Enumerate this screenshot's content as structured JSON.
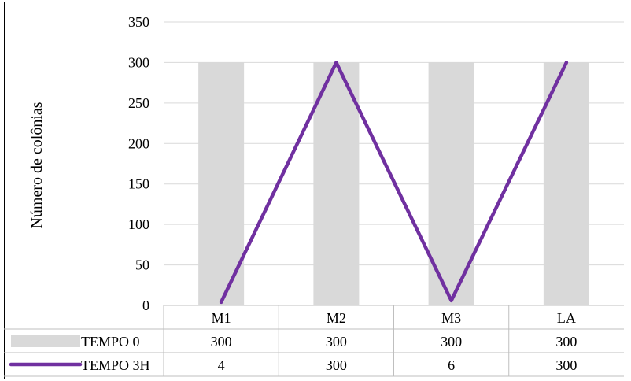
{
  "chart_data": {
    "type": "bar",
    "categories": [
      "M1",
      "M2",
      "M3",
      "LA"
    ],
    "series": [
      {
        "name": "TEMPO 0",
        "type": "bar",
        "values": [
          300,
          300,
          300,
          300
        ],
        "color": "#d9d9d9"
      },
      {
        "name": "TEMPO 3H",
        "type": "line",
        "values": [
          4,
          300,
          6,
          300
        ],
        "color": "#7030a0"
      }
    ],
    "ylabel": "Número de colônias",
    "ylim": [
      0,
      350
    ],
    "yticks": [
      0,
      50,
      100,
      150,
      200,
      250,
      300,
      350
    ],
    "grid": true,
    "legend": "data table below plot",
    "data_table": true
  }
}
